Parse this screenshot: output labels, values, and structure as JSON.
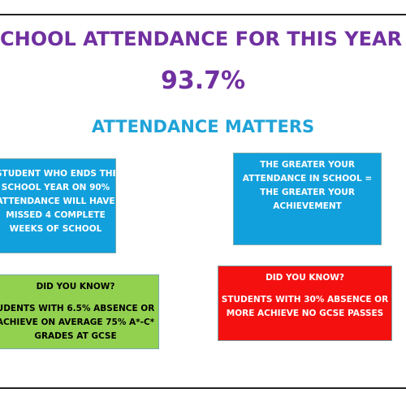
{
  "title": "CHOOL ATTENDANCE FOR THIS YEAR",
  "percentage": "93.7%",
  "subtitle": "ATTENDANCE MATTERS",
  "boxes": [
    {
      "lines": [
        "STUDENT WHO ENDS THE",
        "SCHOOL YEAR ON 90%",
        "ATTENDANCE WILL HAVE",
        "MISSED 4 COMPLETE",
        "WEEKS OF SCHOOL"
      ]
    },
    {
      "lines": [
        "THE GREATER YOUR",
        "ATTENDANCE IN SCHOOL  =",
        "THE GREATER YOUR",
        "ACHIEVEMENT"
      ]
    },
    {
      "heading": "DID YOU KNOW?",
      "lines": [
        "UDENTS WITH 6.5% ABSENCE OR",
        "ACHIEVE ON AVERAGE 75% A*-C*",
        "GRADES AT GCSE"
      ]
    },
    {
      "heading": "DID YOU KNOW?",
      "lines": [
        "STUDENTS WITH 30% ABSENCE OR",
        "MORE ACHIEVE NO GCSE PASSES"
      ]
    }
  ]
}
